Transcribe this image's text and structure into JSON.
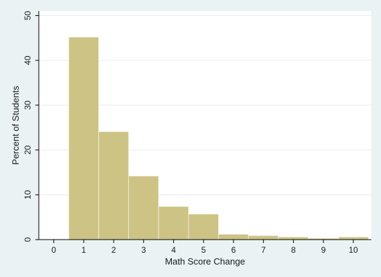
{
  "chart_data": {
    "type": "bar",
    "title": "",
    "xlabel": "Math Score Change",
    "ylabel": "Percent of Students",
    "xlim": [
      -0.5,
      10.6
    ],
    "ylim": [
      0,
      51
    ],
    "x_ticks": [
      "0",
      "1",
      "2",
      "3",
      "4",
      "5",
      "6",
      "7",
      "8",
      "9",
      "10"
    ],
    "y_ticks": [
      "0",
      "10",
      "20",
      "30",
      "40",
      "50"
    ],
    "grid": true,
    "categories": [
      "1",
      "2",
      "3",
      "4",
      "5",
      "6",
      "7",
      "8",
      "9",
      "10"
    ],
    "series": [
      {
        "values": [
          45.2,
          24.1,
          14.2,
          7.4,
          5.7,
          1.2,
          0.9,
          0.6,
          0.3,
          0.6
        ]
      }
    ],
    "bar_color": "#cdc385",
    "plot_background": "#ffffff",
    "figure_background": "#eaf2f3"
  }
}
